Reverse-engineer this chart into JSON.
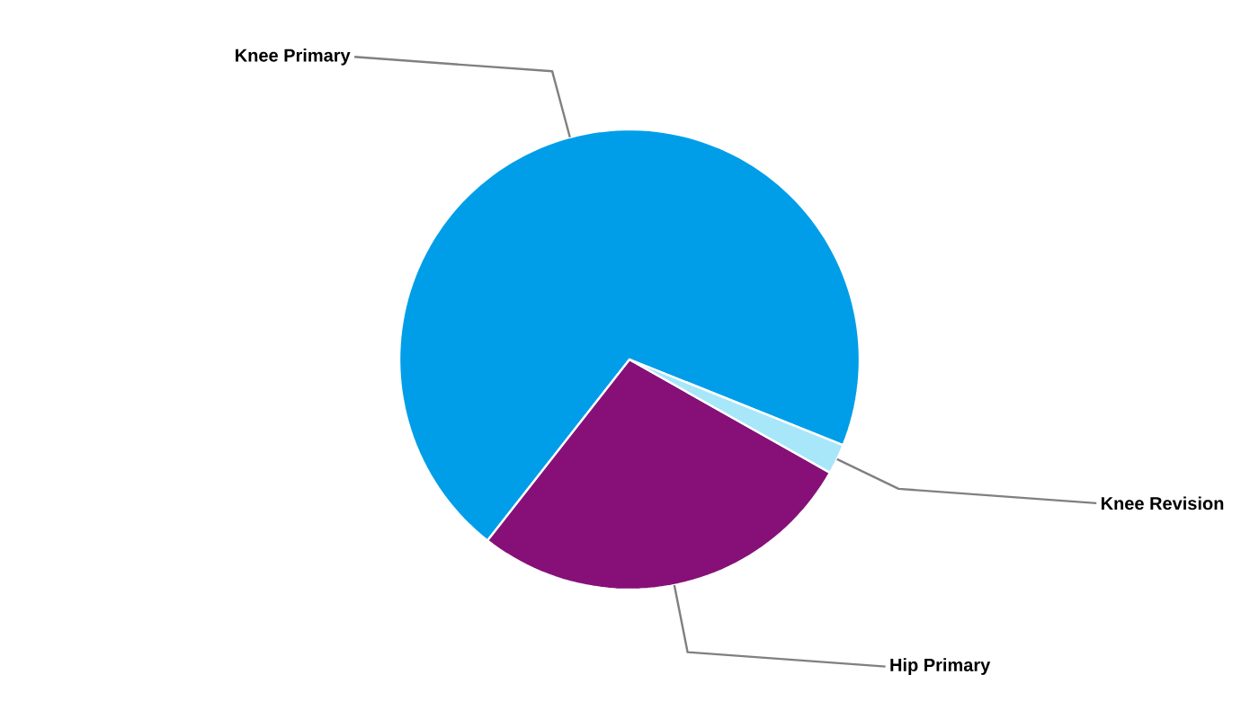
{
  "chart_data": {
    "type": "pie",
    "categories": [
      "Knee Primary",
      "Hip Primary",
      "Knee Revision"
    ],
    "values": [
      70.5,
      27.4,
      2.1
    ],
    "colors": [
      "#009ee8",
      "#861078",
      "#a8e6fa"
    ]
  }
}
